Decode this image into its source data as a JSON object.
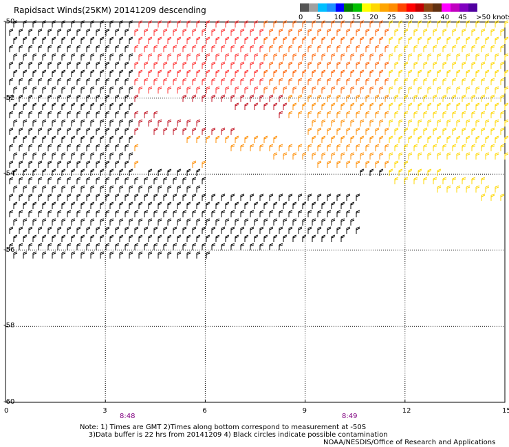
{
  "title": "Rapidsact Winds(25KM) 20141209 descending",
  "legend": {
    "labels": [
      "0",
      "5",
      "10",
      "15",
      "20",
      "25",
      "30",
      "35",
      "40",
      "45",
      ">50 knots"
    ],
    "colors": [
      "#555555",
      "#a0a0a0",
      "#00bfff",
      "#1e90ff",
      "#0000ff",
      "#008000",
      "#00c000",
      "#ffff00",
      "#ffd700",
      "#ffa500",
      "#ff8c00",
      "#ff4500",
      "#ff0000",
      "#c00000",
      "#8b4513",
      "#603010",
      "#ff00ff",
      "#c000c0",
      "#8000c0",
      "#5000a0"
    ]
  },
  "y_axis": {
    "labels": [
      "-50",
      "-52",
      "-54",
      "-56",
      "-58",
      "-60"
    ]
  },
  "x_axis": {
    "labels": [
      "0",
      "3",
      "6",
      "9",
      "12",
      "15"
    ]
  },
  "time_labels": [
    "8:48",
    "8:49"
  ],
  "notes": {
    "line1": "Note: 1) Times are GMT 2)Times along bottom correspond to measurement at -50S",
    "line2": "3)Data buffer is 22 hrs from 20141209 4) Black circles indicate possible contamination",
    "credit": "NOAA/NESDIS/Office of Research and Applications"
  }
}
